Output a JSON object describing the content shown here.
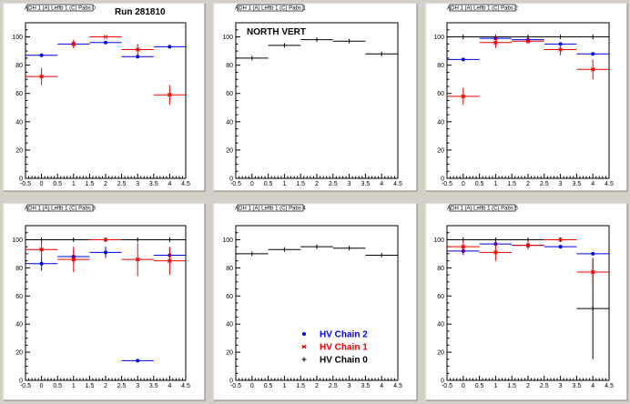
{
  "colors": {
    "chain2": "#0000ee",
    "chain1": "#ee0000",
    "chain0": "#000000"
  },
  "chart_data": [
    {
      "type": "scatter",
      "title": "ADH 1 (A) Leftb 1 (C) Pabs 0",
      "annotation": "Run 281810",
      "xlim": [
        -0.5,
        4.5
      ],
      "ylim": [
        0,
        110
      ],
      "xticks": [
        "-0.5",
        "0",
        "0.5",
        "1",
        "1.5",
        "2",
        "2.5",
        "3",
        "3.5",
        "4",
        "4.5"
      ],
      "yticks": [
        "0",
        "20",
        "40",
        "60",
        "80",
        "100"
      ],
      "series": [
        {
          "key": "chain2",
          "marker": "dot",
          "points": [
            {
              "x": 0,
              "y": 87,
              "xerr": 0.5,
              "yerr": 0
            },
            {
              "x": 1,
              "y": 95,
              "xerr": 0.5,
              "yerr": 2
            },
            {
              "x": 2,
              "y": 96,
              "xerr": 0.5,
              "yerr": 0
            },
            {
              "x": 3,
              "y": 86,
              "xerr": 0.5,
              "yerr": 0
            },
            {
              "x": 4,
              "y": 93,
              "xerr": 0.5,
              "yerr": 0
            }
          ]
        },
        {
          "key": "chain1",
          "marker": "star",
          "points": [
            {
              "x": 0,
              "y": 72,
              "xerr": 0.5,
              "yerr": 6
            },
            {
              "x": 1,
              "y": 95,
              "xerr": 0,
              "yerr": 3
            },
            {
              "x": 2,
              "y": 100,
              "xerr": 0.5,
              "yerr": 0
            },
            {
              "x": 3,
              "y": 91,
              "xerr": 0.5,
              "yerr": 4
            },
            {
              "x": 4,
              "y": 59,
              "xerr": 0.5,
              "yerr": 7
            }
          ]
        }
      ]
    },
    {
      "type": "scatter",
      "title": "ADH 1 (A) Leftb 1 (C) Pabs 1",
      "annotation": "NORTH VERT",
      "xlim": [
        -0.5,
        4.5
      ],
      "ylim": [
        0,
        110
      ],
      "xticks": [
        "-0.5",
        "0",
        "0.5",
        "1",
        "1.5",
        "2",
        "2.5",
        "3",
        "3.5",
        "4",
        "4.5"
      ],
      "yticks": [
        "0",
        "20",
        "40",
        "60",
        "80",
        "100"
      ],
      "series": [
        {
          "key": "chain0",
          "marker": "cross",
          "points": [
            {
              "x": 0,
              "y": 85,
              "xerr": 0.5,
              "yerr": 0
            },
            {
              "x": 1,
              "y": 94,
              "xerr": 0.5,
              "yerr": 0
            },
            {
              "x": 2,
              "y": 98,
              "xerr": 0.5,
              "yerr": 0
            },
            {
              "x": 3,
              "y": 97,
              "xerr": 0.5,
              "yerr": 0
            },
            {
              "x": 4,
              "y": 88,
              "xerr": 0.5,
              "yerr": 0
            }
          ]
        }
      ]
    },
    {
      "type": "scatter",
      "title": "ADH 1 (A) Leftb 1 (C) Pabs 2",
      "annotation": "",
      "xlim": [
        -0.5,
        4.5
      ],
      "ylim": [
        0,
        110
      ],
      "xticks": [
        "-0.5",
        "0",
        "0.5",
        "1",
        "1.5",
        "2",
        "2.5",
        "3",
        "3.5",
        "4",
        "4.5"
      ],
      "yticks": [
        "0",
        "20",
        "40",
        "60",
        "80",
        "100"
      ],
      "series": [
        {
          "key": "chain0",
          "marker": "cross",
          "points": [
            {
              "x": 0,
              "y": 100,
              "xerr": 0.5,
              "yerr": 0
            },
            {
              "x": 1,
              "y": 100,
              "xerr": 0.5,
              "yerr": 0
            },
            {
              "x": 2,
              "y": 100,
              "xerr": 0.5,
              "yerr": 0
            },
            {
              "x": 3,
              "y": 100,
              "xerr": 0.5,
              "yerr": 0
            },
            {
              "x": 4,
              "y": 100,
              "xerr": 0.5,
              "yerr": 0
            }
          ]
        },
        {
          "key": "chain2",
          "marker": "dot",
          "points": [
            {
              "x": 0,
              "y": 84,
              "xerr": 0.5,
              "yerr": 0
            },
            {
              "x": 1,
              "y": 99,
              "xerr": 0.5,
              "yerr": 0
            },
            {
              "x": 2,
              "y": 98,
              "xerr": 0.5,
              "yerr": 0
            },
            {
              "x": 3,
              "y": 95,
              "xerr": 0.5,
              "yerr": 0
            },
            {
              "x": 4,
              "y": 88,
              "xerr": 0.5,
              "yerr": 0
            }
          ]
        },
        {
          "key": "chain1",
          "marker": "star",
          "points": [
            {
              "x": 0,
              "y": 58,
              "xerr": 0.5,
              "yerr": 6
            },
            {
              "x": 1,
              "y": 96,
              "xerr": 0.5,
              "yerr": 4
            },
            {
              "x": 2,
              "y": 97,
              "xerr": 0.5,
              "yerr": 2
            },
            {
              "x": 3,
              "y": 91,
              "xerr": 0.5,
              "yerr": 4
            },
            {
              "x": 4,
              "y": 77,
              "xerr": 0.5,
              "yerr": 7
            }
          ]
        }
      ]
    },
    {
      "type": "scatter",
      "title": "ADH 1 (A) Leftb 1 (C) Pabs 3",
      "annotation": "",
      "xlim": [
        -0.5,
        4.5
      ],
      "ylim": [
        0,
        110
      ],
      "xticks": [
        "-0.5",
        "0",
        "0.5",
        "1",
        "1.5",
        "2",
        "2.5",
        "3",
        "3.5",
        "4",
        "4.5"
      ],
      "yticks": [
        "0",
        "20",
        "40",
        "60",
        "80",
        "100"
      ],
      "series": [
        {
          "key": "chain0",
          "marker": "cross",
          "points": [
            {
              "x": 0,
              "y": 100,
              "xerr": 0.5,
              "yerr": 0
            },
            {
              "x": 1,
              "y": 100,
              "xerr": 0.5,
              "yerr": 0
            },
            {
              "x": 2,
              "y": 100,
              "xerr": 0.5,
              "yerr": 0
            },
            {
              "x": 3,
              "y": 100,
              "xerr": 0.5,
              "yerr": 0
            },
            {
              "x": 4,
              "y": 100,
              "xerr": 0.5,
              "yerr": 0
            }
          ]
        },
        {
          "key": "chain2",
          "marker": "dot",
          "points": [
            {
              "x": 0,
              "y": 83,
              "xerr": 0.5,
              "yerr": 5
            },
            {
              "x": 1,
              "y": 88,
              "xerr": 0.5,
              "yerr": 5
            },
            {
              "x": 2,
              "y": 91,
              "xerr": 0.5,
              "yerr": 4
            },
            {
              "x": 3,
              "y": 14,
              "xerr": 0.5,
              "yerr": 0
            },
            {
              "x": 4,
              "y": 89,
              "xerr": 0.5,
              "yerr": 5
            }
          ]
        },
        {
          "key": "chain1",
          "marker": "star",
          "points": [
            {
              "x": 0,
              "y": 93,
              "xerr": 0.5,
              "yerr": 7
            },
            {
              "x": 1,
              "y": 86,
              "xerr": 0.5,
              "yerr": 9
            },
            {
              "x": 2,
              "y": 100,
              "xerr": 0.5,
              "yerr": 0
            },
            {
              "x": 3,
              "y": 86,
              "xerr": 0.5,
              "yerr": 12
            },
            {
              "x": 4,
              "y": 85,
              "xerr": 0.5,
              "yerr": 10
            }
          ]
        }
      ]
    },
    {
      "type": "scatter",
      "title": "ADH 1 (A) Leftb 1 (C) Pabs 4",
      "annotation": "",
      "xlim": [
        -0.5,
        4.5
      ],
      "ylim": [
        0,
        110
      ],
      "xticks": [
        "-0.5",
        "0",
        "0.5",
        "1",
        "1.5",
        "2",
        "2.5",
        "3",
        "3.5",
        "4",
        "4.5"
      ],
      "yticks": [
        "0",
        "20",
        "40",
        "60",
        "80",
        "100"
      ],
      "legend": {
        "position": "bottom-right",
        "entries": [
          {
            "key": "chain2",
            "marker": "dot",
            "label": "HV Chain 2"
          },
          {
            "key": "chain1",
            "marker": "star",
            "label": "HV Chain 1"
          },
          {
            "key": "chain0",
            "marker": "cross",
            "label": "HV Chain 0"
          }
        ]
      },
      "series": [
        {
          "key": "chain0",
          "marker": "cross",
          "points": [
            {
              "x": 0,
              "y": 90,
              "xerr": 0.5,
              "yerr": 0
            },
            {
              "x": 1,
              "y": 93,
              "xerr": 0.5,
              "yerr": 0
            },
            {
              "x": 2,
              "y": 95,
              "xerr": 0.5,
              "yerr": 0
            },
            {
              "x": 3,
              "y": 94,
              "xerr": 0.5,
              "yerr": 0
            },
            {
              "x": 4,
              "y": 89,
              "xerr": 0.5,
              "yerr": 0
            }
          ]
        }
      ]
    },
    {
      "type": "scatter",
      "title": "ADH 1 (A) Leftb 1 (C) Pabs 5",
      "annotation": "",
      "xlim": [
        -0.5,
        4.5
      ],
      "ylim": [
        0,
        110
      ],
      "xticks": [
        "-0.5",
        "0",
        "0.5",
        "1",
        "1.5",
        "2",
        "2.5",
        "3",
        "3.5",
        "4",
        "4.5"
      ],
      "yticks": [
        "0",
        "20",
        "40",
        "60",
        "80",
        "100"
      ],
      "series": [
        {
          "key": "chain0",
          "marker": "cross",
          "points": [
            {
              "x": 0,
              "y": 100,
              "xerr": 0.5,
              "yerr": 0
            },
            {
              "x": 1,
              "y": 100,
              "xerr": 0.5,
              "yerr": 0
            },
            {
              "x": 2,
              "y": 100,
              "xerr": 0.5,
              "yerr": 0
            },
            {
              "x": 3,
              "y": 100,
              "xerr": 0.5,
              "yerr": 0
            },
            {
              "x": 4,
              "y": 51,
              "xerr": 0.5,
              "yerr": 36
            }
          ]
        },
        {
          "key": "chain2",
          "marker": "dot",
          "points": [
            {
              "x": 0,
              "y": 92,
              "xerr": 0.5,
              "yerr": 3
            },
            {
              "x": 1,
              "y": 97,
              "xerr": 0.5,
              "yerr": 0
            },
            {
              "x": 2,
              "y": 96,
              "xerr": 0.5,
              "yerr": 0
            },
            {
              "x": 3,
              "y": 95,
              "xerr": 0.5,
              "yerr": 0
            },
            {
              "x": 4,
              "y": 90,
              "xerr": 0.5,
              "yerr": 0
            }
          ]
        },
        {
          "key": "chain1",
          "marker": "star",
          "points": [
            {
              "x": 0,
              "y": 95,
              "xerr": 0.5,
              "yerr": 4
            },
            {
              "x": 1,
              "y": 91,
              "xerr": 0.5,
              "yerr": 6
            },
            {
              "x": 2,
              "y": 96,
              "xerr": 0.5,
              "yerr": 3
            },
            {
              "x": 3,
              "y": 100,
              "xerr": 0.5,
              "yerr": 0
            },
            {
              "x": 4,
              "y": 77,
              "xerr": 0.5,
              "yerr": 9
            }
          ]
        }
      ]
    }
  ]
}
